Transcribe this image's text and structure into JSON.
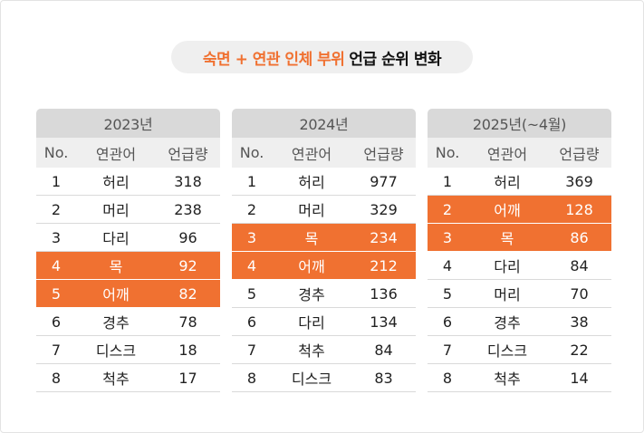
{
  "title": {
    "highlight": "숙면 + 연관 인체 부위",
    "rest": "언급 순위 변화"
  },
  "colors": {
    "highlight": "#f07131",
    "header": "#d9d9d9",
    "subheader": "#efefef"
  },
  "columns": {
    "no": "No.",
    "keyword": "연관어",
    "count": "언급량"
  },
  "tables": [
    {
      "year": "2023년",
      "rows": [
        {
          "no": "1",
          "keyword": "허리",
          "count": "318",
          "highlight": false
        },
        {
          "no": "2",
          "keyword": "머리",
          "count": "238",
          "highlight": false
        },
        {
          "no": "3",
          "keyword": "다리",
          "count": "96",
          "highlight": false
        },
        {
          "no": "4",
          "keyword": "목",
          "count": "92",
          "highlight": true
        },
        {
          "no": "5",
          "keyword": "어깨",
          "count": "82",
          "highlight": true
        },
        {
          "no": "6",
          "keyword": "경추",
          "count": "78",
          "highlight": false
        },
        {
          "no": "7",
          "keyword": "디스크",
          "count": "18",
          "highlight": false
        },
        {
          "no": "8",
          "keyword": "척추",
          "count": "17",
          "highlight": false
        }
      ]
    },
    {
      "year": "2024년",
      "rows": [
        {
          "no": "1",
          "keyword": "허리",
          "count": "977",
          "highlight": false
        },
        {
          "no": "2",
          "keyword": "머리",
          "count": "329",
          "highlight": false
        },
        {
          "no": "3",
          "keyword": "목",
          "count": "234",
          "highlight": true
        },
        {
          "no": "4",
          "keyword": "어깨",
          "count": "212",
          "highlight": true
        },
        {
          "no": "5",
          "keyword": "경추",
          "count": "136",
          "highlight": false
        },
        {
          "no": "6",
          "keyword": "다리",
          "count": "134",
          "highlight": false
        },
        {
          "no": "7",
          "keyword": "척추",
          "count": "84",
          "highlight": false
        },
        {
          "no": "8",
          "keyword": "디스크",
          "count": "83",
          "highlight": false
        }
      ]
    },
    {
      "year": "2025년(~4월)",
      "rows": [
        {
          "no": "1",
          "keyword": "허리",
          "count": "369",
          "highlight": false
        },
        {
          "no": "2",
          "keyword": "어깨",
          "count": "128",
          "highlight": true
        },
        {
          "no": "3",
          "keyword": "목",
          "count": "86",
          "highlight": true
        },
        {
          "no": "4",
          "keyword": "다리",
          "count": "84",
          "highlight": false
        },
        {
          "no": "5",
          "keyword": "머리",
          "count": "70",
          "highlight": false
        },
        {
          "no": "6",
          "keyword": "경추",
          "count": "38",
          "highlight": false
        },
        {
          "no": "7",
          "keyword": "디스크",
          "count": "22",
          "highlight": false
        },
        {
          "no": "8",
          "keyword": "척추",
          "count": "14",
          "highlight": false
        }
      ]
    }
  ]
}
